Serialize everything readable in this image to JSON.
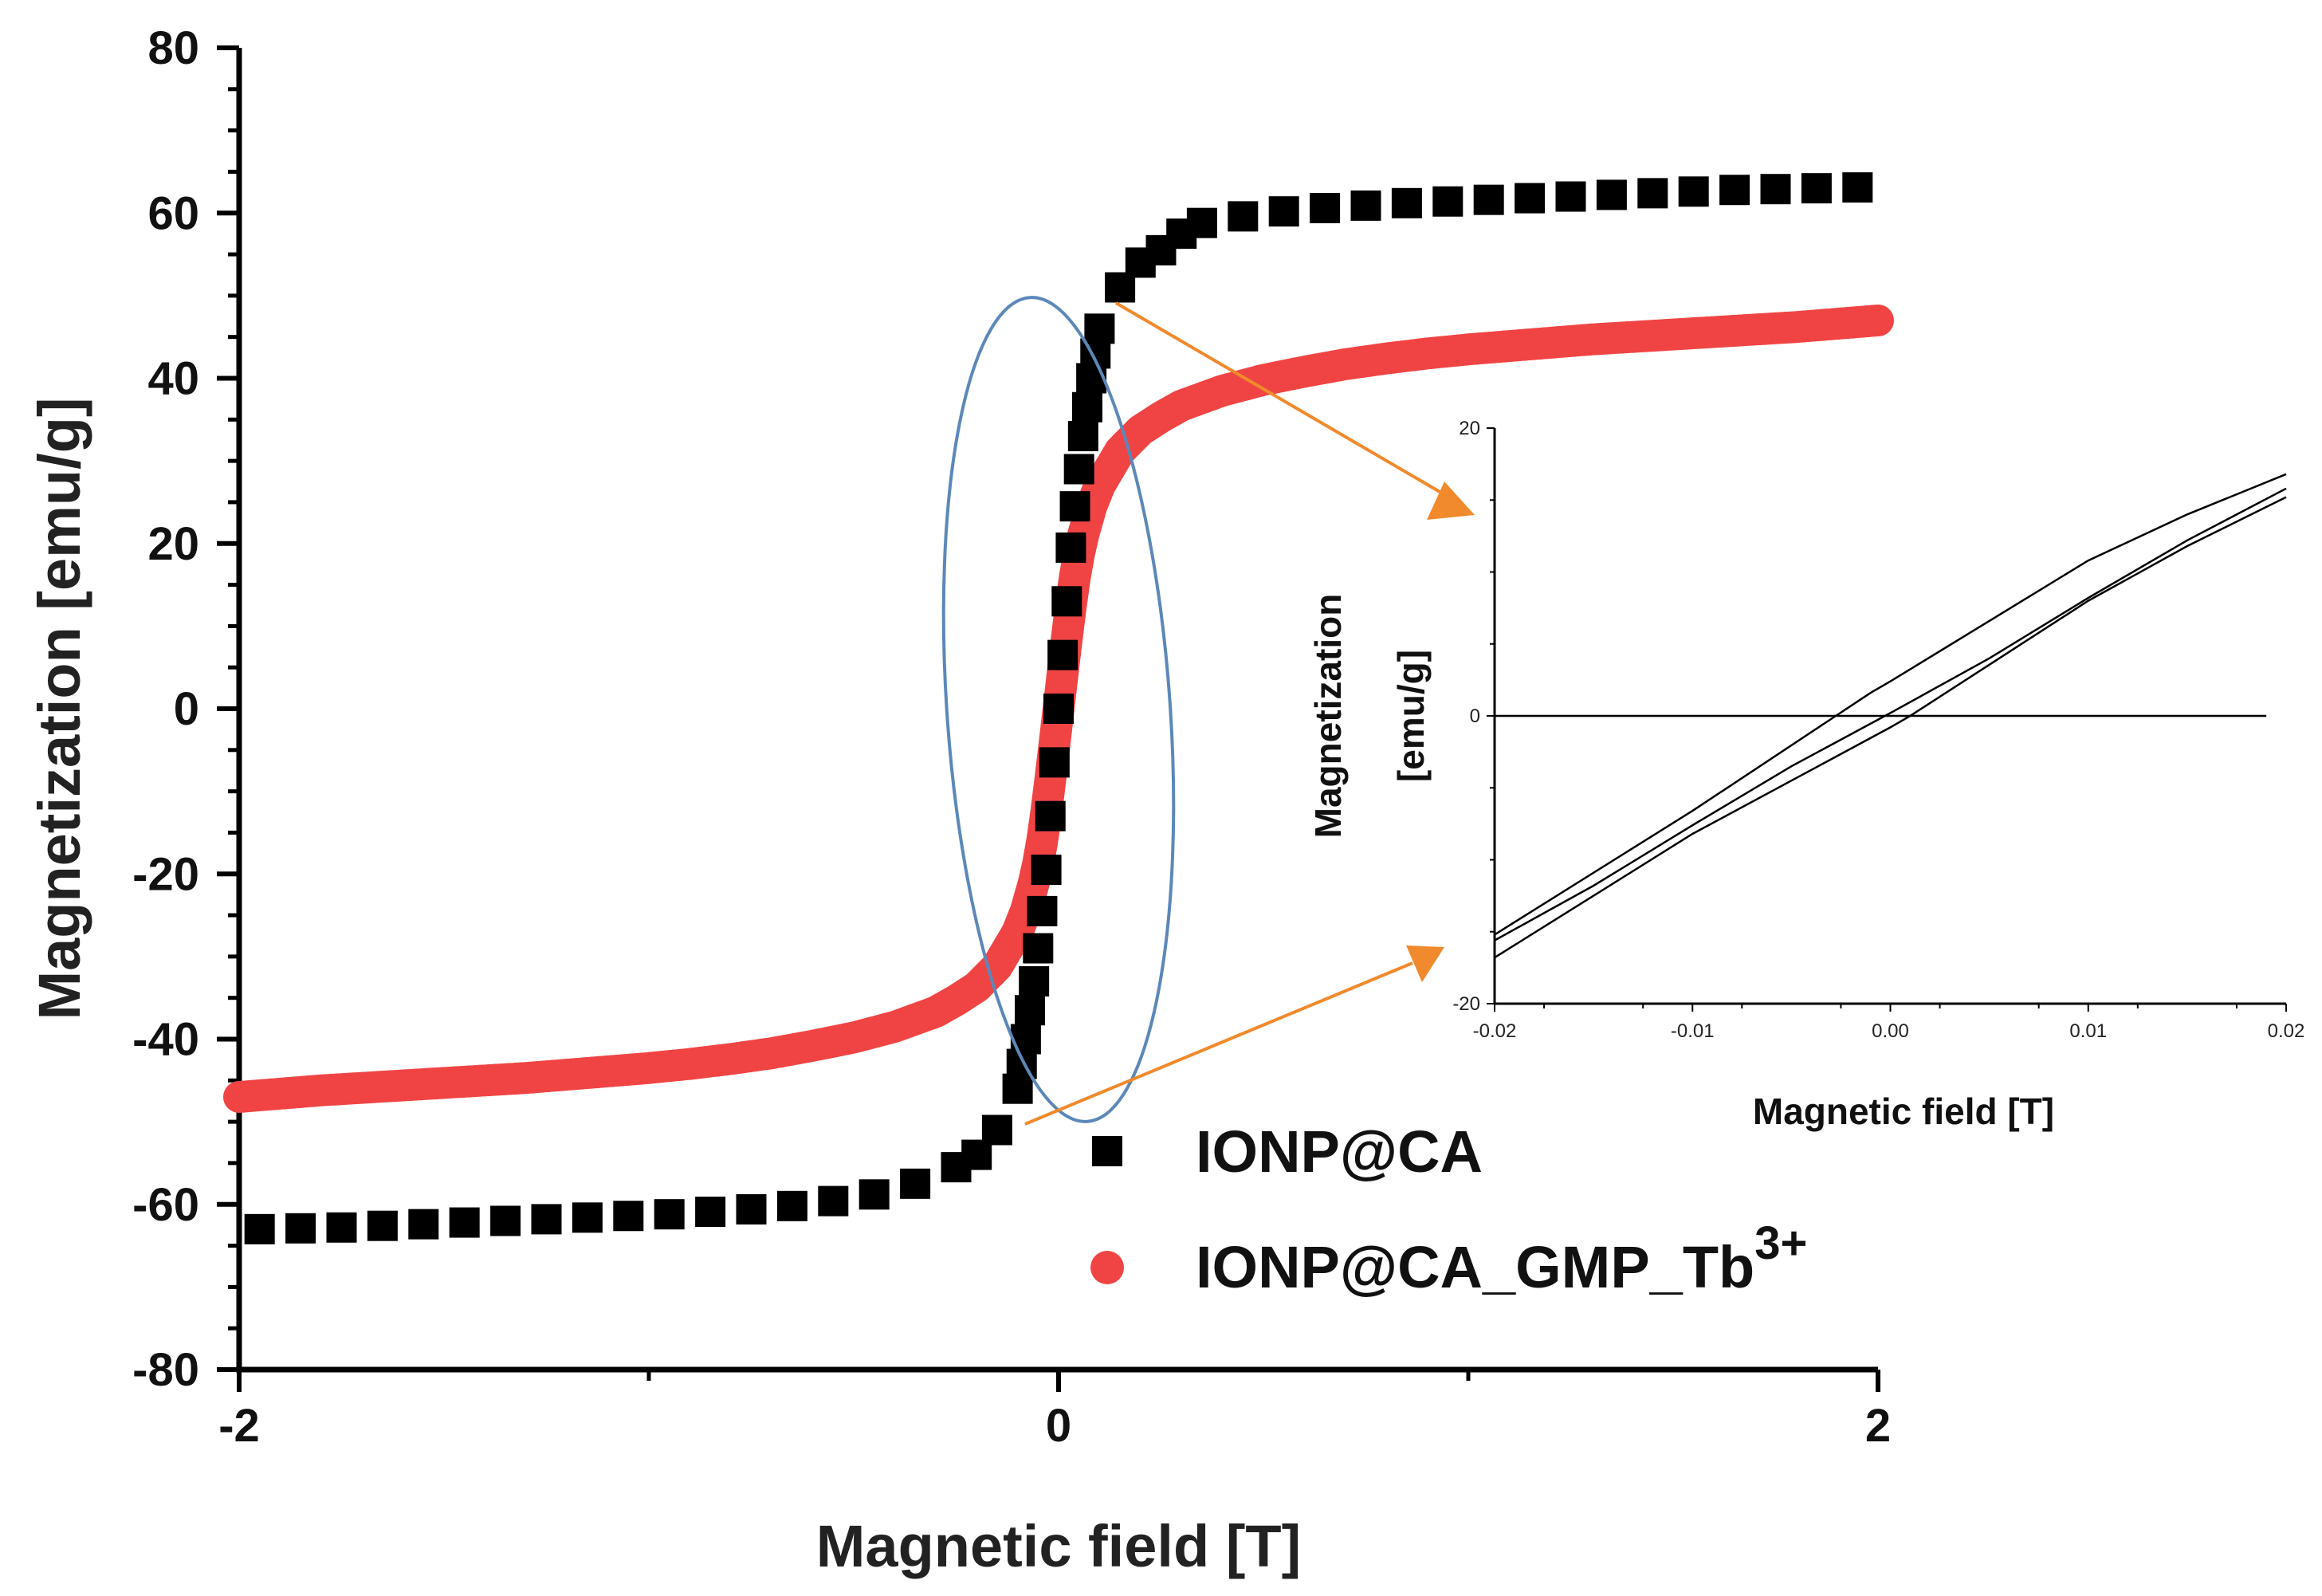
{
  "chart_data": {
    "type": "scatter",
    "title": "",
    "xlabel": "Magnetic field [T]",
    "ylabel": "Magnetization [emu/g]",
    "xlim": [
      -2,
      2
    ],
    "ylim": [
      -80,
      80
    ],
    "xticks": [
      -2,
      0,
      2
    ],
    "yticks": [
      -80,
      -60,
      -40,
      -20,
      0,
      20,
      40,
      60,
      80
    ],
    "series": [
      {
        "name": "IONP@CA",
        "marker": "square",
        "color": "#000000",
        "x": [
          -1.95,
          -1.85,
          -1.75,
          -1.65,
          -1.55,
          -1.45,
          -1.35,
          -1.25,
          -1.15,
          -1.05,
          -0.95,
          -0.85,
          -0.75,
          -0.65,
          -0.55,
          -0.45,
          -0.35,
          -0.25,
          -0.2,
          -0.15,
          -0.1,
          -0.09,
          -0.08,
          -0.07,
          -0.06,
          -0.05,
          -0.04,
          -0.03,
          -0.02,
          -0.01,
          0.0,
          0.01,
          0.02,
          0.03,
          0.04,
          0.05,
          0.06,
          0.07,
          0.08,
          0.09,
          0.1,
          0.15,
          0.2,
          0.25,
          0.3,
          0.35,
          0.45,
          0.55,
          0.65,
          0.75,
          0.85,
          0.95,
          1.05,
          1.15,
          1.25,
          1.35,
          1.45,
          1.55,
          1.65,
          1.75,
          1.85,
          1.95
        ],
        "y": [
          -63,
          -62.9,
          -62.8,
          -62.6,
          -62.4,
          -62.2,
          -62.0,
          -61.8,
          -61.6,
          -61.4,
          -61.2,
          -60.9,
          -60.6,
          -60.2,
          -59.6,
          -58.8,
          -57.5,
          -55.5,
          -54,
          -51,
          -46,
          -43,
          -40,
          -36.5,
          -33,
          -29,
          -24.5,
          -19.5,
          -13,
          -6.5,
          0,
          6.5,
          13,
          19.5,
          24.5,
          29,
          33,
          36.5,
          40,
          43,
          46,
          51,
          54,
          55.5,
          57.5,
          58.8,
          59.6,
          60.2,
          60.6,
          60.9,
          61.2,
          61.4,
          61.6,
          61.8,
          62.0,
          62.2,
          62.4,
          62.6,
          62.8,
          62.9,
          63,
          63.1
        ]
      },
      {
        "name": "IONP@CA_GMP_Tb3+",
        "legend_base": "IONP@CA_GMP_Tb",
        "legend_superscript": "3+",
        "marker": "circle",
        "color": "#f04444",
        "x": [
          -2.0,
          -1.9,
          -1.8,
          -1.7,
          -1.6,
          -1.5,
          -1.4,
          -1.3,
          -1.2,
          -1.1,
          -1.0,
          -0.9,
          -0.8,
          -0.7,
          -0.6,
          -0.5,
          -0.4,
          -0.3,
          -0.25,
          -0.2,
          -0.15,
          -0.1,
          -0.08,
          -0.06,
          -0.05,
          -0.04,
          -0.03,
          -0.02,
          -0.01,
          0.0,
          0.01,
          0.02,
          0.03,
          0.04,
          0.05,
          0.06,
          0.08,
          0.1,
          0.15,
          0.2,
          0.25,
          0.3,
          0.4,
          0.5,
          0.6,
          0.7,
          0.8,
          0.9,
          1.0,
          1.1,
          1.2,
          1.3,
          1.4,
          1.5,
          1.6,
          1.7,
          1.8,
          1.9,
          2.0
        ],
        "y": [
          -47,
          -46.6,
          -46.2,
          -45.9,
          -45.6,
          -45.3,
          -45.0,
          -44.7,
          -44.3,
          -43.9,
          -43.5,
          -43.0,
          -42.4,
          -41.7,
          -40.8,
          -39.8,
          -38.5,
          -36.7,
          -35.3,
          -33.7,
          -31.2,
          -27.0,
          -24.5,
          -21.0,
          -18.8,
          -16.0,
          -12.5,
          -8.5,
          -4.3,
          0,
          4.3,
          8.5,
          12.5,
          16.0,
          18.8,
          21.0,
          24.5,
          27.0,
          31.2,
          33.7,
          35.3,
          36.7,
          38.5,
          39.8,
          40.8,
          41.7,
          42.4,
          43.0,
          43.5,
          43.9,
          44.3,
          44.7,
          45.0,
          45.3,
          45.6,
          45.9,
          46.2,
          46.6,
          47
        ]
      }
    ],
    "annotations": {
      "highlight": "ellipse around the low-field region, linked by orange arrows to the inset"
    },
    "inset": {
      "type": "line",
      "xlabel": "Magnetic field [T]",
      "ylabel_line1": "Magnetization",
      "ylabel_line2": "[emu/g]",
      "xlim": [
        -0.02,
        0.02
      ],
      "ylim": [
        -20,
        20
      ],
      "xticks": [
        "-0.02",
        "-0.01",
        "0.00",
        "0.01",
        "0.02"
      ],
      "yticks": [
        "-20",
        "0",
        "20"
      ],
      "loops": [
        {
          "x": [
            -0.02,
            -0.01,
            -0.001,
            0.0,
            0.01,
            0.015,
            0.02
          ],
          "y": [
            -15.2,
            -6.6,
            1.6,
            2.4,
            10.8,
            14.0,
            16.8
          ]
        },
        {
          "x": [
            -0.02,
            -0.01,
            0.0,
            0.001,
            0.01,
            0.015,
            0.02
          ],
          "y": [
            -16.8,
            -8.2,
            -0.8,
            0.0,
            8.0,
            11.8,
            15.2
          ]
        },
        {
          "x": [
            -0.02,
            -0.015,
            -0.01,
            -0.005,
            0.0,
            0.005,
            0.01,
            0.015,
            0.02
          ],
          "y": [
            -15.6,
            -11.8,
            -7.6,
            -3.5,
            0.2,
            4.0,
            8.2,
            12.2,
            15.8
          ]
        }
      ],
      "zero_line": {
        "x": [
          -0.02,
          0.019
        ],
        "y": [
          0,
          0
        ]
      }
    }
  }
}
